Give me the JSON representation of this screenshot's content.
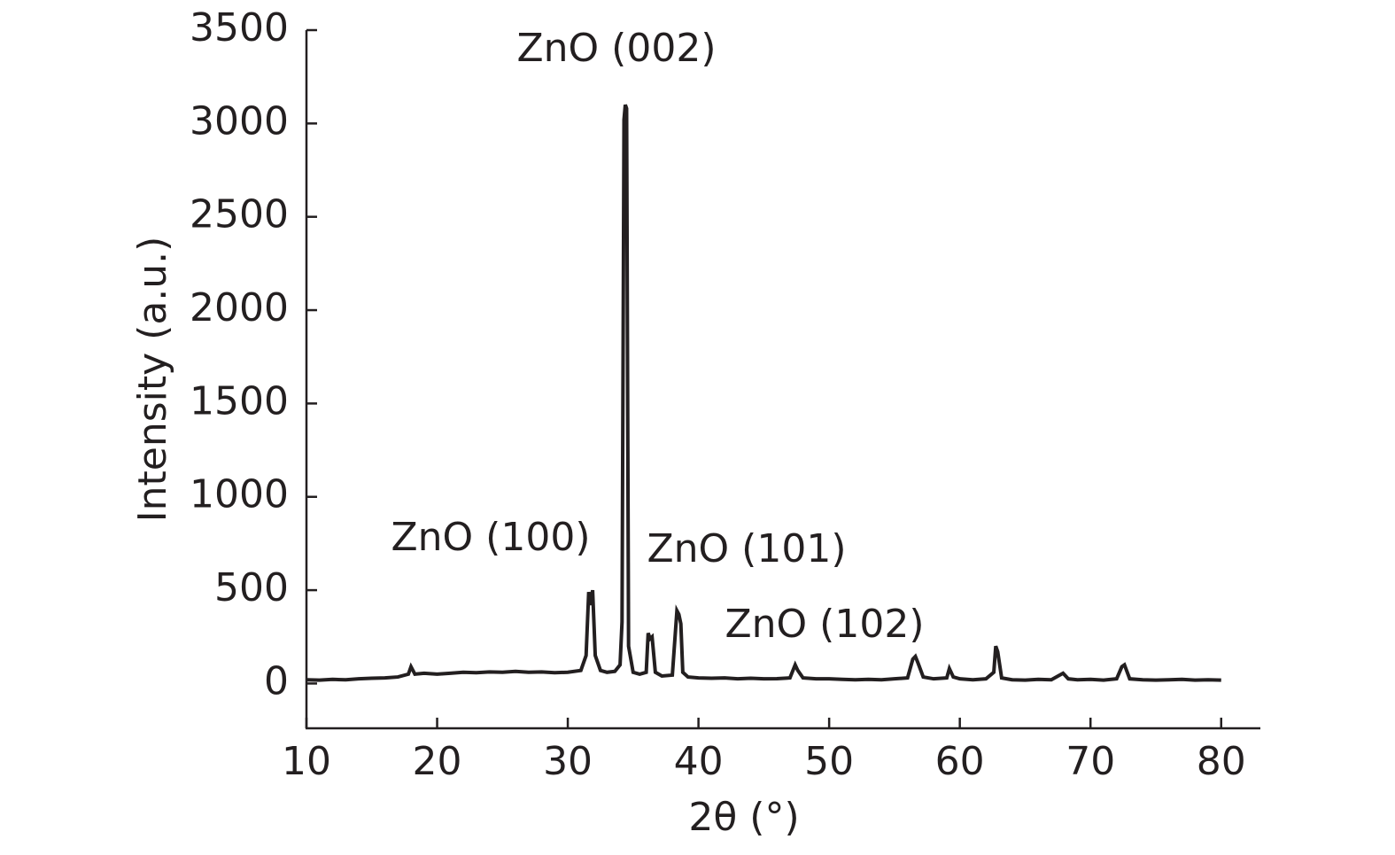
{
  "chart_data": {
    "type": "line",
    "xlabel": "2θ (°)",
    "ylabel": "Intensity (a.u.)",
    "xlim": [
      10,
      83
    ],
    "xticks": [
      10,
      20,
      30,
      40,
      50,
      60,
      70,
      80
    ],
    "ylim": [
      -240,
      3500
    ],
    "yticks": [
      0,
      500,
      1000,
      1500,
      2000,
      2500,
      3000,
      3500
    ],
    "grid": false,
    "annotations": [
      "ZnO (002)",
      "ZnO (100)",
      "ZnO (101)",
      "ZnO (102)"
    ],
    "x": [
      10,
      11,
      12,
      13,
      14,
      15,
      16,
      17,
      17.8,
      18,
      18.3,
      19,
      20,
      21,
      22,
      23,
      24,
      25,
      26,
      27,
      28,
      29,
      30,
      31,
      31.4,
      31.6,
      31.75,
      31.9,
      32.1,
      32.5,
      33,
      33.6,
      34.0,
      34.15,
      34.3,
      34.4,
      34.5,
      34.65,
      35,
      35.5,
      36.0,
      36.15,
      36.3,
      36.45,
      36.7,
      37.2,
      38.0,
      38.35,
      38.5,
      38.65,
      38.8,
      39.2,
      40,
      41,
      42,
      43,
      44,
      45,
      46,
      47,
      47.4,
      47.6,
      48,
      49,
      50,
      51,
      52,
      53,
      54,
      55,
      56,
      56.4,
      56.6,
      56.8,
      57.2,
      58,
      59,
      59.2,
      59.5,
      60,
      61,
      62,
      62.6,
      62.75,
      62.9,
      63.2,
      64,
      65,
      66,
      67,
      67.9,
      68.3,
      69,
      70,
      71,
      72,
      72.4,
      72.6,
      73,
      74,
      75,
      76,
      77,
      78,
      79,
      80
    ],
    "series": [
      {
        "color": "#231f20",
        "values": [
          20,
          18,
          22,
          20,
          25,
          28,
          30,
          35,
          50,
          90,
          50,
          55,
          50,
          55,
          60,
          58,
          62,
          60,
          65,
          60,
          62,
          58,
          60,
          70,
          150,
          490,
          420,
          500,
          150,
          70,
          60,
          65,
          100,
          330,
          3020,
          3100,
          3080,
          200,
          60,
          50,
          60,
          270,
          240,
          250,
          60,
          40,
          45,
          390,
          370,
          320,
          60,
          35,
          30,
          28,
          30,
          25,
          28,
          25,
          26,
          30,
          100,
          70,
          30,
          25,
          25,
          22,
          20,
          22,
          20,
          25,
          30,
          130,
          145,
          110,
          35,
          25,
          30,
          80,
          35,
          25,
          20,
          25,
          60,
          200,
          170,
          30,
          20,
          18,
          22,
          20,
          55,
          25,
          20,
          22,
          18,
          25,
          90,
          100,
          25,
          20,
          18,
          20,
          22,
          18,
          20,
          18
        ]
      }
    ]
  }
}
